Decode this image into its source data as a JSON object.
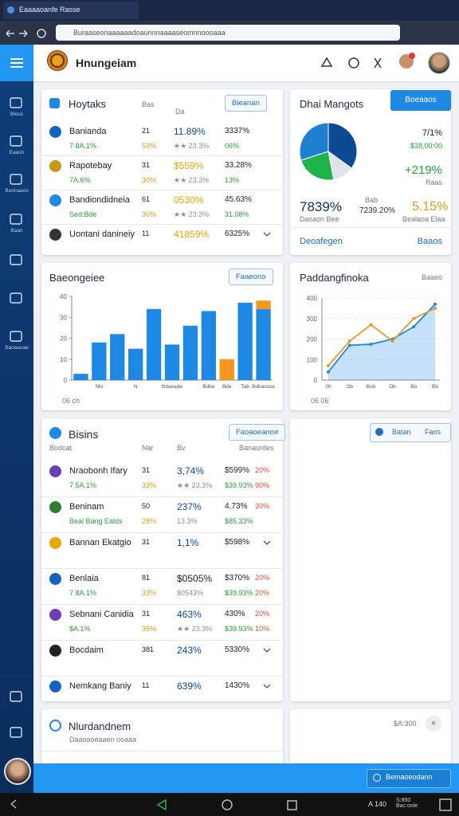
{
  "browser": {
    "tab": "Eaaaaoanfe Rasse",
    "url": "Buraaseonaaaaaadoaunnnaaaaseomnnoooaaa"
  },
  "sidebar": {
    "items": [
      "Bless",
      "Eaasn",
      "Bunnaaos",
      "Baan",
      "Baoaaoae"
    ]
  },
  "header": {
    "title": "Hnungeiam"
  },
  "holdings": {
    "title": "Hoytaks",
    "col_a": "Bas",
    "col_b": "Da",
    "button": "Bieanan",
    "rows": [
      {
        "name": "Banianda",
        "sub": "7 8A.1%",
        "qty": "21",
        "qty_sub": "53%",
        "change": "11.89%",
        "change_sub": "★★ 23.3%",
        "value": "3337%",
        "value_sub": "06%",
        "color": "#0d47a1",
        "icon": "#1565c0"
      },
      {
        "name": "Rapotebay",
        "sub": "7A.6%",
        "qty": "31",
        "qty_sub": "30%",
        "change": "$559%",
        "change_sub": "★★ 23.3%",
        "value": "33.28%",
        "value_sub": "13%",
        "color": "#e6a700",
        "icon": "#c9961a"
      },
      {
        "name": "Bandiondidneia",
        "sub": "Sed:Bde",
        "qty": "61",
        "qty_sub": "30%",
        "change": "0530%",
        "change_sub": "★★ 23.3%",
        "value": "45.63%",
        "value_sub": "31.08%",
        "color": "#e6a700",
        "icon": "#1e88e5"
      },
      {
        "name": "Uontani danineiy",
        "qty": "11",
        "change": "41859%",
        "value": "6325%",
        "color": "#e6a700",
        "icon": "#333333"
      }
    ]
  },
  "market": {
    "title": "Dhai Mangots",
    "button": "Boeaaos",
    "pie": {
      "values": [
        35,
        12,
        23,
        30
      ],
      "colors": [
        "#0d4a94",
        "#dfe4ea",
        "#1fb14a",
        "#1e7fd0"
      ]
    },
    "stat1": "7/1%",
    "stat1_sub": "$38,00:00",
    "stat2": "+219%",
    "stat2_sub": "Raas",
    "big": "7839%",
    "big_sub": "Dasaon Bee",
    "mid_label": "Bab",
    "mid": "7239.20%",
    "right": "5.15%",
    "right_sub": "Bealaoa Elaa",
    "link1": "Deoafegen",
    "link2": "Baaos"
  },
  "bar_chart": {
    "type": "bar",
    "title": "Baeongeiee",
    "button": "Faaeono",
    "footer": "06 ch",
    "ylim": [
      0,
      40
    ],
    "yticks": [
      0,
      10,
      20,
      30,
      40
    ],
    "grid": false,
    "categories": [
      null,
      "Nbi",
      null,
      "N",
      null,
      "Bdaeade",
      null,
      "Bdbe",
      "Bde",
      "Tab",
      "Bdbaosse"
    ],
    "series": [
      {
        "color": "#1e88e5",
        "values": [
          3,
          18,
          22,
          15,
          34,
          17,
          26,
          33,
          null,
          37,
          34
        ]
      },
      {
        "color": "#f5961f",
        "values": [
          null,
          null,
          null,
          null,
          null,
          null,
          null,
          null,
          10,
          null,
          4
        ]
      }
    ]
  },
  "line_chart": {
    "type": "line",
    "title": "Paddangfinoka",
    "subtitle": "Baaeo",
    "footer": "06 06",
    "ylim": [
      0,
      400
    ],
    "yticks": [
      0,
      100,
      200,
      300,
      400
    ],
    "grid": true,
    "categories": [
      "00",
      "Ob",
      "Bob",
      "Ob",
      "Bb",
      "Bb"
    ],
    "series": [
      {
        "color": "#1e88e5",
        "values": [
          40,
          170,
          175,
          200,
          260,
          370
        ]
      },
      {
        "color": "#e59a2e",
        "values": [
          70,
          190,
          270,
          190,
          300,
          350
        ]
      }
    ]
  },
  "list2": {
    "title": "Bisins",
    "col_a": "Bodcat",
    "col_b": "Nar",
    "col_c": "Bv",
    "col_d": "Banaurdes",
    "button": "Faoaoeanoe",
    "rows": [
      {
        "name": "Nraobonh Ifary",
        "sub": "7 5A.1%",
        "qty": "31",
        "qty_sub": "33%",
        "change": "3,74%",
        "change_sub": "★★ 23.3%",
        "value": "$599%",
        "value_sub": "$39.93%",
        "extra": "20%",
        "extra_sub": "90%",
        "color": "#0d47a1",
        "icon": "#6a3fb5"
      },
      {
        "name": "Beninam",
        "sub": "Beal Bang Ealds",
        "qty": "50",
        "qty_sub": "28%",
        "change": "237%",
        "change_sub": "13.3%",
        "value": "4,73%",
        "value_sub": "$85.33%",
        "extra": "30%",
        "color": "#0d47a1",
        "icon": "#2e7d32"
      },
      {
        "name": "Bannan Ekatgio",
        "qty": "31",
        "change": "1,1%",
        "value": "$598%",
        "color": "#0d47a1",
        "icon": "#e6a700"
      },
      {
        "name": "Benlaia",
        "sub": "7 8A.1%",
        "qty": "81",
        "qty_sub": "33%",
        "change": "$0505%",
        "change_sub": "$0543%",
        "value": "$370%",
        "value_sub": "$39.93%",
        "extra": "20%",
        "extra_sub": "20%",
        "color": "#222222",
        "icon": "#1565c0"
      },
      {
        "name": "Sebnani Canidia",
        "sub": "$A.1%",
        "qty": "31",
        "qty_sub": "35%",
        "change": "463%",
        "change_sub": "★★ 23.3%",
        "value": "430%",
        "value_sub": "$39.93%",
        "extra": "20%",
        "extra_sub": "10%",
        "color": "#0d47a1",
        "icon": "#6a3fb5"
      },
      {
        "name": "Bocdaim",
        "qty": "381",
        "change": "243%",
        "value": "5330%",
        "color": "#0d47a1",
        "icon": "#222222"
      },
      {
        "name": "Nemkang Baniy",
        "qty": "11",
        "change": "639%",
        "value": "1430%",
        "color": "#0d47a1",
        "icon": "#1565c0"
      }
    ]
  },
  "side_panel": {
    "label1": "Batan",
    "label2": "Faos"
  },
  "bottom_card": {
    "title": "Nlurdandnem",
    "sub": "Daaoaoeaaen ooaaa",
    "right": "$A:300"
  },
  "bottom_bar": {
    "button": "Bemaoeodann"
  },
  "status": {
    "time": "A 140",
    "date": "S:850 Bac:oole"
  }
}
